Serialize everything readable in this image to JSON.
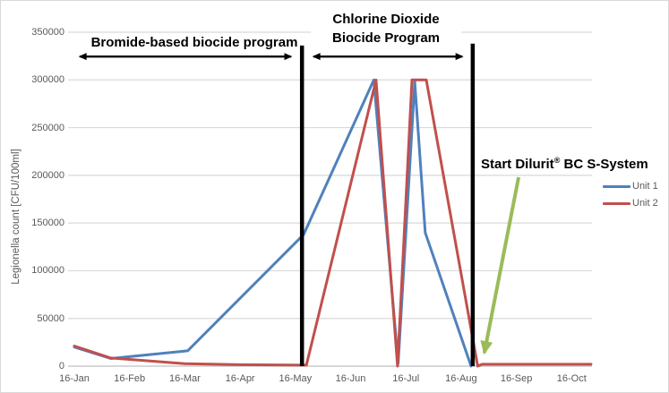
{
  "chart_data": {
    "type": "line",
    "title": "",
    "ylabel": "Legionella count [CFU/100ml]",
    "xlabel": "",
    "ylim": [
      0,
      350000
    ],
    "grid": "horizontal",
    "legend_position": "right-middle",
    "x_unit": "months after 16-Jan (0 = 16-Jan, 9 = 16-Oct)",
    "x_tick_labels": [
      "16-Jan",
      "16-Feb",
      "16-Mar",
      "16-Apr",
      "16-May",
      "16-Jun",
      "16-Jul",
      "16-Aug",
      "16-Sep",
      "16-Oct"
    ],
    "y_tick_values": [
      0,
      50000,
      100000,
      150000,
      200000,
      250000,
      300000,
      350000
    ],
    "y_tick_labels": [
      "0",
      "50000",
      "100000",
      "150000",
      "200000",
      "250000",
      "300000",
      "350000"
    ],
    "series": [
      {
        "name": "Unit 1",
        "color": "#4F81BD",
        "points": [
          [
            0,
            20000
          ],
          [
            0.66,
            8000
          ],
          [
            2.05,
            16000
          ],
          [
            4.15,
            138000
          ],
          [
            5.42,
            300000
          ],
          [
            5.86,
            3000
          ],
          [
            6.16,
            298000
          ],
          [
            6.35,
            140000
          ],
          [
            7.18,
            0
          ]
        ]
      },
      {
        "name": "Unit 2",
        "color": "#C0504D",
        "points": [
          [
            0,
            21000
          ],
          [
            0.66,
            8500
          ],
          [
            2.0,
            2500
          ],
          [
            3.0,
            1500
          ],
          [
            4.2,
            1000
          ],
          [
            5.46,
            300000
          ],
          [
            5.85,
            0
          ],
          [
            6.11,
            300000
          ],
          [
            6.37,
            300000
          ],
          [
            7.3,
            0
          ],
          [
            7.38,
            2000
          ],
          [
            9.35,
            2000
          ]
        ]
      }
    ],
    "annotations": [
      {
        "type": "vline",
        "month": 4.12,
        "top_value": 336000,
        "color": "#000000"
      },
      {
        "type": "vline",
        "month": 7.21,
        "top_value": 338000,
        "color": "#000000"
      },
      {
        "type": "double_arrow",
        "from_month": -0.03,
        "to_month": 4.05,
        "value": 324500,
        "color": "#000000",
        "label": "Bromide-based biocide program"
      },
      {
        "type": "double_arrow",
        "from_month": 4.2,
        "to_month": 7.15,
        "value": 324500,
        "color": "#000000",
        "label": "Chlorine Dioxide Biocide Program"
      },
      {
        "type": "arrow",
        "from": [
          8.04,
          198000
        ],
        "to": [
          7.42,
          14000
        ],
        "color": "#9BBB59",
        "label": "Start Dilurit® BC S-System"
      }
    ]
  },
  "annotations_text": {
    "bromide": "Bromide-based biocide program",
    "chlorine_line1": "Chlorine Dioxide",
    "chlorine_line2": "Biocide Program",
    "start_prefix": "Start Dilurit",
    "start_sup": "®",
    "start_suffix": " BC S-System"
  },
  "axis": {
    "y_title": "Legionella count [CFU/100ml]"
  },
  "legend": {
    "items": [
      {
        "label": "Unit 1",
        "color": "#4F81BD"
      },
      {
        "label": "Unit 2",
        "color": "#C0504D"
      }
    ]
  },
  "colors": {
    "gridline": "#D9D9D9",
    "axis_line": "#BFBFBF",
    "tick_text": "#595959",
    "annotation_text": "#000000",
    "unit1": "#4F81BD",
    "unit2": "#C0504D",
    "green_arrow": "#9BBB59"
  }
}
